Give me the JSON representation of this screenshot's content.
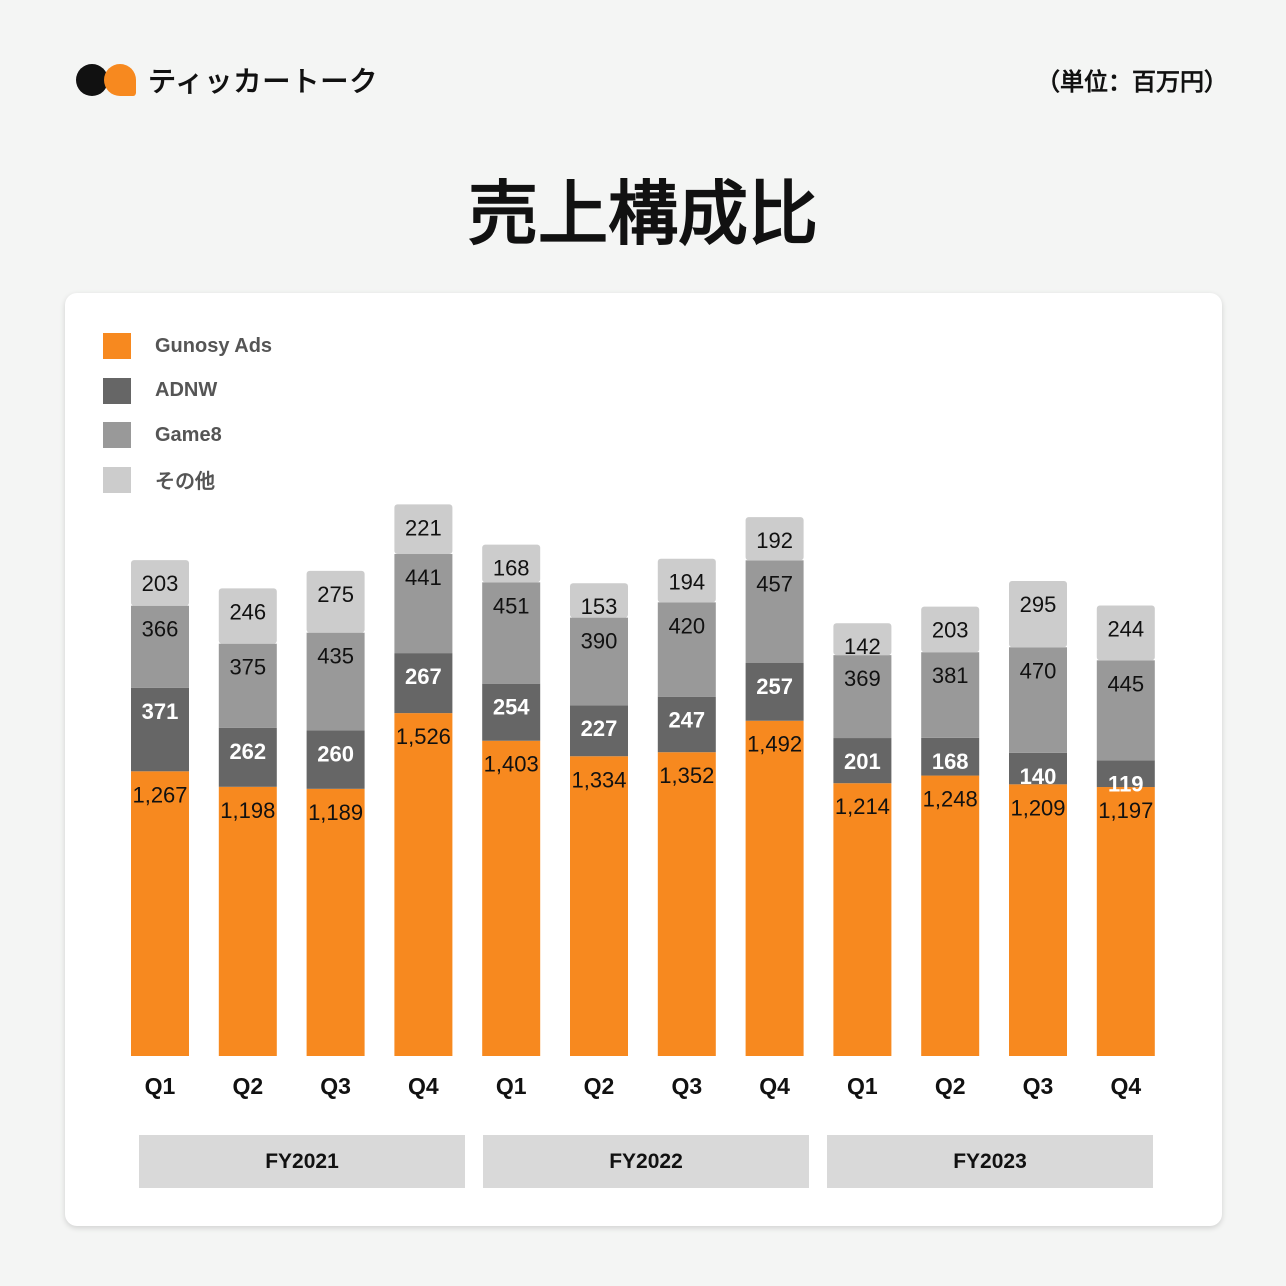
{
  "brand": {
    "name": "ティッカートーク"
  },
  "unit": "（単位：百万円）",
  "title": "売上構成比",
  "chart_data": {
    "type": "bar",
    "stacked": true,
    "title": "売上構成比",
    "categories": [
      "Q1",
      "Q2",
      "Q3",
      "Q4",
      "Q1",
      "Q2",
      "Q3",
      "Q4",
      "Q1",
      "Q2",
      "Q3",
      "Q4"
    ],
    "groups": [
      {
        "label": "FY2021",
        "span": 4
      },
      {
        "label": "FY2022",
        "span": 4
      },
      {
        "label": "FY2023",
        "span": 4
      }
    ],
    "legend_position": "top-left",
    "grid": false,
    "series": [
      {
        "name": "Gunosy Ads",
        "color": "#f7891f",
        "values": [
          1267,
          1198,
          1189,
          1526,
          1403,
          1334,
          1352,
          1492,
          1214,
          1248,
          1209,
          1197
        ]
      },
      {
        "name": "ADNW",
        "color": "#666666",
        "values": [
          371,
          262,
          260,
          267,
          254,
          227,
          247,
          257,
          201,
          168,
          140,
          119
        ]
      },
      {
        "name": "Game8",
        "color": "#999999",
        "values": [
          366,
          375,
          435,
          441,
          451,
          390,
          420,
          457,
          369,
          381,
          470,
          445
        ]
      },
      {
        "name": "その他",
        "color": "#cccccc",
        "values": [
          203,
          246,
          275,
          221,
          168,
          153,
          194,
          192,
          142,
          203,
          295,
          244
        ]
      }
    ]
  }
}
